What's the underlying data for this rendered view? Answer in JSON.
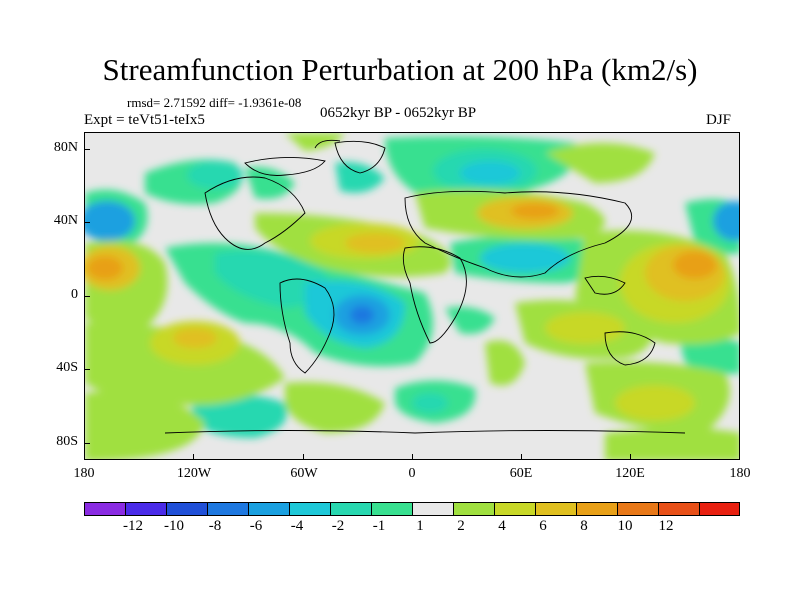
{
  "title": "Streamfunction Perturbation at 200 hPa (km2/s)",
  "stats": "rmsd= 2.71592 diff= -1.9361e-08",
  "experiment": "Expt = teVt51-teIx5",
  "period": "0652kyr BP - 0652kyr BP",
  "season": "DJF",
  "x_ticks": [
    "180",
    "120W",
    "60W",
    "0",
    "60E",
    "120E",
    "180"
  ],
  "y_ticks": [
    "80N",
    "40N",
    "0",
    "40S",
    "80S"
  ],
  "colorbar": {
    "colors": [
      "#8a2be2",
      "#4a2be8",
      "#2050d8",
      "#1e78e0",
      "#1aa0e0",
      "#1ec8d8",
      "#28d8b0",
      "#38e090",
      "#e8e8e8",
      "#a0e040",
      "#c8d828",
      "#e0c020",
      "#e8a018",
      "#e87818",
      "#e85018",
      "#e82010"
    ],
    "labels": [
      "-12",
      "-10",
      "-8",
      "-6",
      "-4",
      "-2",
      "-1",
      "1",
      "2",
      "4",
      "6",
      "8",
      "10",
      "12"
    ]
  }
}
